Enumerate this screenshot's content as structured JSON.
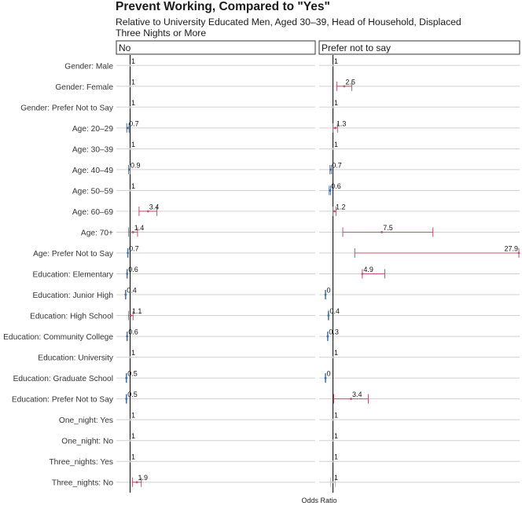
{
  "chart_data": {
    "type": "forest",
    "title": "Prevent Working, Compared to \"Yes\"",
    "subtitle": "Relative to University Educated Men, Aged 30–39, Head of Household, Displaced Three Nights or More",
    "xlabel": "Odds Ratio",
    "reference_value": 1,
    "categories": [
      "Gender: Male",
      "Gender: Female",
      "Gender: Prefer Not to Say",
      "Age: 20–29",
      "Age: 30–39",
      "Age: 40–49",
      "Age: 50–59",
      "Age: 60–69",
      "Age: 70+",
      "Age: Prefer Not to Say",
      "Education: Elementary",
      "Education: Junior High",
      "Education: High School",
      "Education: Community College",
      "Education: University",
      "Education: Graduate School",
      "Education: Prefer Not to Say",
      "One_night: Yes",
      "One_night: No",
      "Three_nights: Yes",
      "Three_nights: No"
    ],
    "panels": [
      {
        "name": "No",
        "xlim": [
          0,
          25
        ],
        "values": [
          1,
          1,
          1,
          0.7,
          1,
          0.9,
          1,
          3.4,
          1.4,
          0.7,
          0.6,
          0.4,
          1.1,
          0.6,
          1,
          0.5,
          0.5,
          1,
          1,
          1,
          1.9
        ],
        "labels": [
          "1",
          "1",
          "1",
          "0.7",
          "1",
          "0.9",
          "1",
          "3.4",
          "1.4",
          "0.7",
          "0.6",
          "0.4",
          "1.1",
          "0.6",
          "1",
          "0.5",
          "0.5",
          "1",
          "1",
          "1",
          "1.9"
        ],
        "ci_low": [
          1,
          1,
          1,
          0.55,
          1,
          0.8,
          1,
          2.2,
          0.8,
          0.7,
          0.6,
          0.4,
          0.8,
          0.6,
          1,
          0.5,
          0.5,
          1,
          1,
          1,
          1.3
        ],
        "ci_high": [
          1,
          1,
          1,
          0.85,
          1,
          1.0,
          1,
          4.6,
          2.0,
          0.7,
          0.6,
          0.4,
          1.4,
          0.6,
          1,
          0.5,
          0.5,
          1,
          1,
          1,
          2.5
        ]
      },
      {
        "name": "Prefer not to say",
        "xlim": [
          0,
          25
        ],
        "values": [
          1,
          2.5,
          1,
          1.3,
          1,
          0.7,
          0.6,
          1.2,
          7.5,
          27.9,
          4.9,
          0,
          0.4,
          0.3,
          1,
          0,
          3.4,
          1,
          1,
          1,
          1
        ],
        "labels": [
          "1",
          "2.5",
          "1",
          "1.3",
          "1",
          "0.7",
          "0.6",
          "1.2",
          "7.5",
          "27.9",
          "4.9",
          "0",
          "0.4",
          "0.3",
          "1",
          "0",
          "3.4",
          "1",
          "1",
          "1",
          "1"
        ],
        "ci_low": [
          1,
          1.5,
          1,
          1.0,
          1,
          0.6,
          0.5,
          1.0,
          2.3,
          3.9,
          4.9,
          0,
          0.4,
          0.3,
          1,
          0,
          1.1,
          1,
          1,
          1,
          0.7
        ],
        "ci_high": [
          1,
          3.5,
          1,
          1.6,
          1,
          0.8,
          0.7,
          1.4,
          14.3,
          51.9,
          7.9,
          0,
          0.4,
          0.3,
          1,
          0,
          5.7,
          1,
          1,
          1,
          1.3
        ]
      }
    ],
    "colors": {
      "above_one": "#c8506a",
      "below_one": "#3d6fb0",
      "neutral": "#bbbbbb",
      "reference_line": "#000000",
      "row_line": "#d0d0d0"
    },
    "legend": "none",
    "grid": true
  }
}
